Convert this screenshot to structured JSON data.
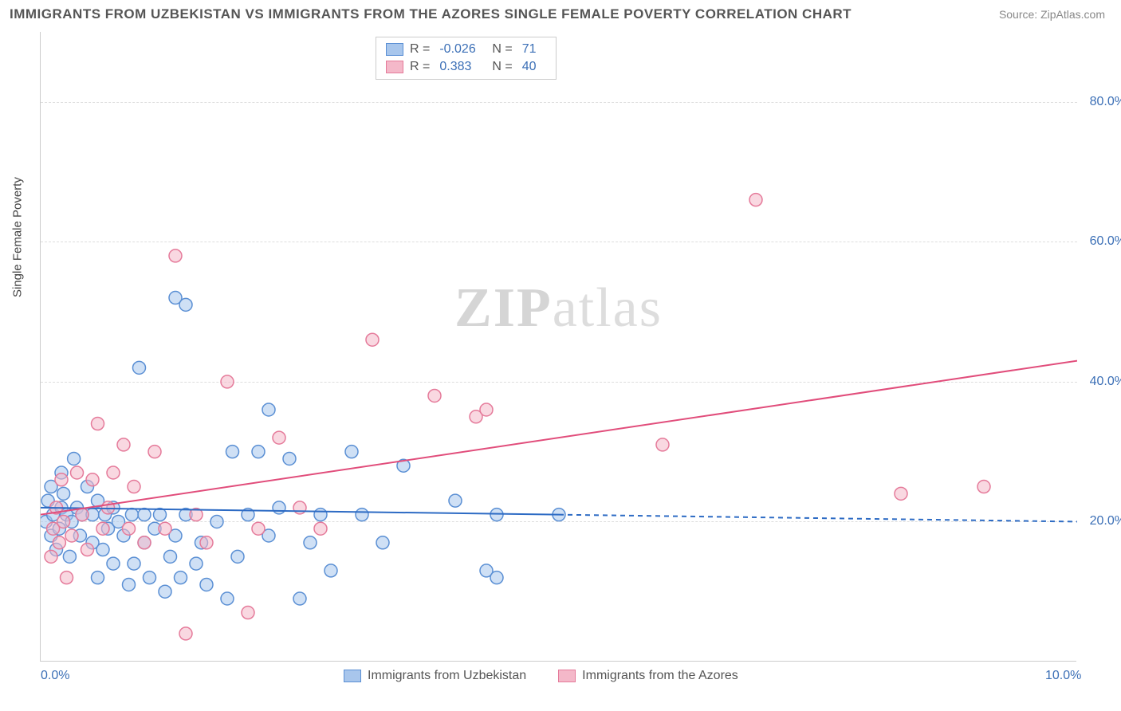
{
  "title": "IMMIGRANTS FROM UZBEKISTAN VS IMMIGRANTS FROM THE AZORES SINGLE FEMALE POVERTY CORRELATION CHART",
  "source": "Source: ZipAtlas.com",
  "y_axis_label": "Single Female Poverty",
  "watermark": "ZIPatlas",
  "chart": {
    "type": "scatter",
    "xlim": [
      0,
      10
    ],
    "ylim": [
      0,
      90
    ],
    "x_ticks": [
      {
        "value": 0,
        "label": "0.0%"
      },
      {
        "value": 10,
        "label": "10.0%"
      }
    ],
    "y_ticks": [
      {
        "value": 20,
        "label": "20.0%"
      },
      {
        "value": 40,
        "label": "40.0%"
      },
      {
        "value": 60,
        "label": "60.0%"
      },
      {
        "value": 80,
        "label": "80.0%"
      }
    ],
    "grid_color": "#dddddd",
    "background_color": "#ffffff",
    "marker_radius": 8,
    "marker_stroke_width": 1.5,
    "series": [
      {
        "name": "Immigrants from Uzbekistan",
        "fill": "#a8c6ec",
        "stroke": "#5a8fd4",
        "fill_opacity": 0.55,
        "r_value": "-0.026",
        "n_value": "71",
        "trend": {
          "x1": 0,
          "y1": 22,
          "x2": 5,
          "y2": 21,
          "dash_x2": 10,
          "dash_y2": 20,
          "color": "#2d6bc4",
          "width": 2
        },
        "points": [
          [
            0.05,
            20
          ],
          [
            0.07,
            23
          ],
          [
            0.1,
            18
          ],
          [
            0.1,
            25
          ],
          [
            0.12,
            21
          ],
          [
            0.15,
            16
          ],
          [
            0.18,
            19
          ],
          [
            0.2,
            27
          ],
          [
            0.2,
            22
          ],
          [
            0.22,
            24
          ],
          [
            0.25,
            21
          ],
          [
            0.28,
            15
          ],
          [
            0.3,
            20
          ],
          [
            0.32,
            29
          ],
          [
            0.35,
            22
          ],
          [
            0.38,
            18
          ],
          [
            0.4,
            21
          ],
          [
            0.45,
            25
          ],
          [
            0.5,
            21
          ],
          [
            0.5,
            17
          ],
          [
            0.55,
            12
          ],
          [
            0.55,
            23
          ],
          [
            0.6,
            16
          ],
          [
            0.62,
            21
          ],
          [
            0.65,
            19
          ],
          [
            0.7,
            14
          ],
          [
            0.7,
            22
          ],
          [
            0.75,
            20
          ],
          [
            0.8,
            18
          ],
          [
            0.85,
            11
          ],
          [
            0.88,
            21
          ],
          [
            0.9,
            14
          ],
          [
            0.95,
            42
          ],
          [
            1.0,
            21
          ],
          [
            1.0,
            17
          ],
          [
            1.05,
            12
          ],
          [
            1.1,
            19
          ],
          [
            1.15,
            21
          ],
          [
            1.2,
            10
          ],
          [
            1.25,
            15
          ],
          [
            1.3,
            52
          ],
          [
            1.3,
            18
          ],
          [
            1.35,
            12
          ],
          [
            1.4,
            51
          ],
          [
            1.4,
            21
          ],
          [
            1.5,
            14
          ],
          [
            1.55,
            17
          ],
          [
            1.6,
            11
          ],
          [
            1.7,
            20
          ],
          [
            1.8,
            9
          ],
          [
            1.85,
            30
          ],
          [
            1.9,
            15
          ],
          [
            2.0,
            21
          ],
          [
            2.1,
            30
          ],
          [
            2.2,
            36
          ],
          [
            2.2,
            18
          ],
          [
            2.3,
            22
          ],
          [
            2.4,
            29
          ],
          [
            2.5,
            9
          ],
          [
            2.6,
            17
          ],
          [
            2.7,
            21
          ],
          [
            2.8,
            13
          ],
          [
            3.0,
            30
          ],
          [
            3.1,
            21
          ],
          [
            3.3,
            17
          ],
          [
            3.5,
            28
          ],
          [
            4.0,
            23
          ],
          [
            4.3,
            13
          ],
          [
            4.4,
            12
          ],
          [
            4.4,
            21
          ],
          [
            5.0,
            21
          ]
        ]
      },
      {
        "name": "Immigrants from the Azores",
        "fill": "#f4b8c9",
        "stroke": "#e57a9a",
        "fill_opacity": 0.55,
        "r_value": "0.383",
        "n_value": "40",
        "trend": {
          "x1": 0,
          "y1": 21,
          "x2": 10,
          "y2": 43,
          "color": "#e14d7b",
          "width": 2
        },
        "points": [
          [
            0.1,
            15
          ],
          [
            0.12,
            19
          ],
          [
            0.15,
            22
          ],
          [
            0.18,
            17
          ],
          [
            0.2,
            26
          ],
          [
            0.22,
            20
          ],
          [
            0.25,
            12
          ],
          [
            0.3,
            18
          ],
          [
            0.35,
            27
          ],
          [
            0.4,
            21
          ],
          [
            0.45,
            16
          ],
          [
            0.5,
            26
          ],
          [
            0.55,
            34
          ],
          [
            0.6,
            19
          ],
          [
            0.65,
            22
          ],
          [
            0.7,
            27
          ],
          [
            0.8,
            31
          ],
          [
            0.85,
            19
          ],
          [
            0.9,
            25
          ],
          [
            1.0,
            17
          ],
          [
            1.1,
            30
          ],
          [
            1.2,
            19
          ],
          [
            1.3,
            58
          ],
          [
            1.4,
            4
          ],
          [
            1.5,
            21
          ],
          [
            1.6,
            17
          ],
          [
            1.8,
            40
          ],
          [
            2.0,
            7
          ],
          [
            2.1,
            19
          ],
          [
            2.3,
            32
          ],
          [
            2.5,
            22
          ],
          [
            2.7,
            19
          ],
          [
            3.2,
            46
          ],
          [
            3.8,
            38
          ],
          [
            4.2,
            35
          ],
          [
            4.3,
            36
          ],
          [
            6.0,
            31
          ],
          [
            6.9,
            66
          ],
          [
            8.3,
            24
          ],
          [
            9.1,
            25
          ]
        ]
      }
    ]
  },
  "legend_top": {
    "rows": [
      {
        "swatch_fill": "#a8c6ec",
        "swatch_stroke": "#5a8fd4",
        "r_label": "R =",
        "r_val": "-0.026",
        "n_label": "N =",
        "n_val": "71"
      },
      {
        "swatch_fill": "#f4b8c9",
        "swatch_stroke": "#e57a9a",
        "r_label": "R =",
        "r_val": "0.383",
        "n_label": "N =",
        "n_val": "40"
      }
    ]
  },
  "legend_bottom": {
    "items": [
      {
        "swatch_fill": "#a8c6ec",
        "swatch_stroke": "#5a8fd4",
        "label": "Immigrants from Uzbekistan"
      },
      {
        "swatch_fill": "#f4b8c9",
        "swatch_stroke": "#e57a9a",
        "label": "Immigrants from the Azores"
      }
    ]
  }
}
